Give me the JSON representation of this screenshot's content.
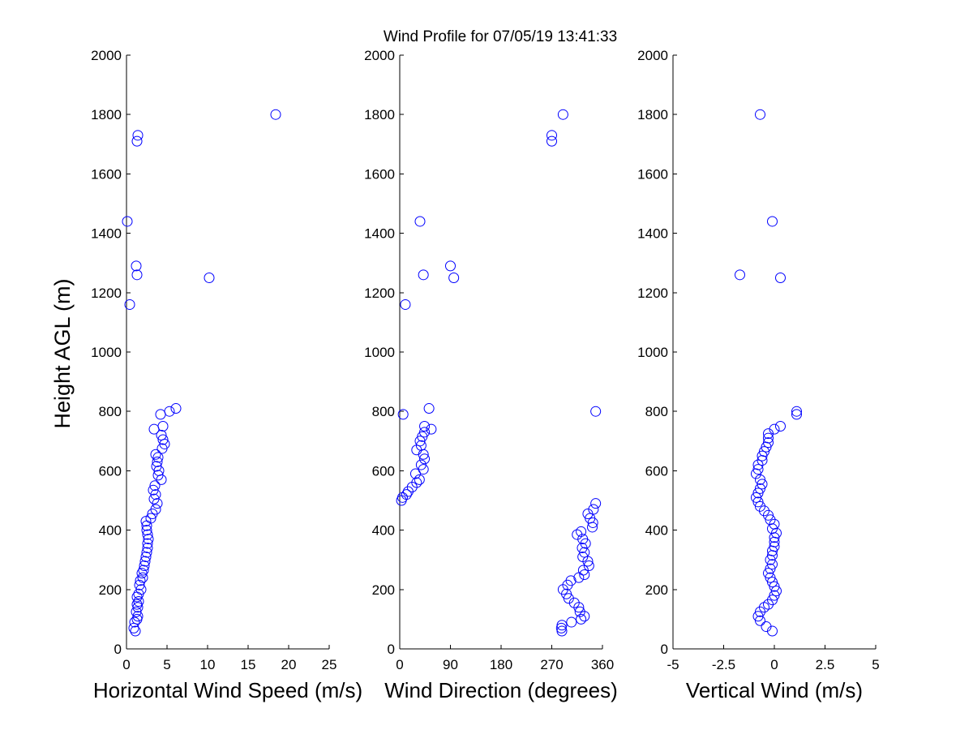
{
  "title": "Wind Profile for  07/05/19 13:41:33",
  "ylabel": "Height AGL (m)",
  "marker_color": "#0000ff",
  "chart_data": [
    {
      "type": "scatter",
      "xlabel": "Horizontal Wind Speed (m/s)",
      "ylabel": "Height AGL (m)",
      "xlim": [
        0,
        25
      ],
      "ylim": [
        0,
        2000
      ],
      "xticks": [
        0,
        5,
        10,
        15,
        20,
        25
      ],
      "xtick_labels": [
        "0",
        "5",
        "10",
        "15",
        "20",
        "25"
      ],
      "yticks": [
        0,
        200,
        400,
        600,
        800,
        1000,
        1200,
        1400,
        1600,
        1800,
        2000
      ],
      "ytick_labels": [
        "0",
        "200",
        "400",
        "600",
        "800",
        "1000",
        "1200",
        "1400",
        "1600",
        "1800",
        "2000"
      ],
      "grid": false,
      "marker": "circle-open",
      "points": [
        [
          1.1,
          60
        ],
        [
          0.9,
          70
        ],
        [
          1.0,
          90
        ],
        [
          1.3,
          100
        ],
        [
          1.4,
          110
        ],
        [
          1.2,
          125
        ],
        [
          1.4,
          140
        ],
        [
          1.3,
          150
        ],
        [
          1.5,
          160
        ],
        [
          1.3,
          175
        ],
        [
          1.5,
          185
        ],
        [
          1.8,
          200
        ],
        [
          1.6,
          215
        ],
        [
          1.7,
          230
        ],
        [
          2.0,
          240
        ],
        [
          1.9,
          255
        ],
        [
          2.1,
          265
        ],
        [
          2.2,
          280
        ],
        [
          2.3,
          295
        ],
        [
          2.4,
          310
        ],
        [
          2.5,
          325
        ],
        [
          2.6,
          340
        ],
        [
          2.6,
          355
        ],
        [
          2.7,
          370
        ],
        [
          2.6,
          385
        ],
        [
          2.5,
          400
        ],
        [
          2.5,
          415
        ],
        [
          2.4,
          430
        ],
        [
          3.0,
          440
        ],
        [
          3.2,
          455
        ],
        [
          3.6,
          470
        ],
        [
          3.8,
          490
        ],
        [
          3.4,
          505
        ],
        [
          3.6,
          520
        ],
        [
          3.3,
          535
        ],
        [
          3.5,
          550
        ],
        [
          4.3,
          570
        ],
        [
          3.9,
          585
        ],
        [
          4.0,
          600
        ],
        [
          3.7,
          615
        ],
        [
          3.8,
          630
        ],
        [
          3.9,
          645
        ],
        [
          3.6,
          655
        ],
        [
          4.4,
          675
        ],
        [
          4.7,
          690
        ],
        [
          4.5,
          705
        ],
        [
          4.3,
          720
        ],
        [
          3.4,
          740
        ],
        [
          4.5,
          750
        ],
        [
          4.2,
          790
        ],
        [
          5.3,
          800
        ],
        [
          6.1,
          810
        ],
        [
          0.4,
          1160
        ],
        [
          10.2,
          1250
        ],
        [
          1.3,
          1260
        ],
        [
          1.2,
          1290
        ],
        [
          0.1,
          1440
        ],
        [
          1.3,
          1710
        ],
        [
          1.4,
          1730
        ],
        [
          18.4,
          1800
        ]
      ]
    },
    {
      "type": "scatter",
      "xlabel": "Wind Direction (degrees)",
      "ylabel": "",
      "xlim": [
        0,
        360
      ],
      "ylim": [
        0,
        2000
      ],
      "xticks": [
        0,
        90,
        180,
        270,
        360
      ],
      "xtick_labels": [
        "0",
        "90",
        "180",
        "270",
        "360"
      ],
      "yticks": [
        0,
        200,
        400,
        600,
        800,
        1000,
        1200,
        1400,
        1600,
        1800,
        2000
      ],
      "ytick_labels": [
        "0",
        "200",
        "400",
        "600",
        "800",
        "1000",
        "1200",
        "1400",
        "1600",
        "1800",
        "2000"
      ],
      "grid": false,
      "marker": "circle-open",
      "points": [
        [
          288,
          60
        ],
        [
          287,
          70
        ],
        [
          288,
          80
        ],
        [
          305,
          90
        ],
        [
          322,
          100
        ],
        [
          328,
          110
        ],
        [
          320,
          125
        ],
        [
          318,
          140
        ],
        [
          310,
          155
        ],
        [
          300,
          170
        ],
        [
          296,
          185
        ],
        [
          290,
          200
        ],
        [
          298,
          215
        ],
        [
          304,
          230
        ],
        [
          318,
          240
        ],
        [
          328,
          250
        ],
        [
          326,
          265
        ],
        [
          336,
          280
        ],
        [
          334,
          295
        ],
        [
          325,
          310
        ],
        [
          328,
          325
        ],
        [
          324,
          340
        ],
        [
          330,
          355
        ],
        [
          325,
          370
        ],
        [
          315,
          385
        ],
        [
          322,
          395
        ],
        [
          342,
          410
        ],
        [
          343,
          425
        ],
        [
          338,
          440
        ],
        [
          334,
          455
        ],
        [
          344,
          470
        ],
        [
          348,
          490
        ],
        [
          3,
          500
        ],
        [
          5,
          510
        ],
        [
          12,
          520
        ],
        [
          15,
          530
        ],
        [
          22,
          545
        ],
        [
          30,
          560
        ],
        [
          35,
          570
        ],
        [
          28,
          590
        ],
        [
          42,
          605
        ],
        [
          38,
          620
        ],
        [
          44,
          640
        ],
        [
          42,
          655
        ],
        [
          30,
          670
        ],
        [
          38,
          685
        ],
        [
          36,
          700
        ],
        [
          40,
          715
        ],
        [
          44,
          730
        ],
        [
          56,
          740
        ],
        [
          44,
          750
        ],
        [
          6,
          790
        ],
        [
          348,
          800
        ],
        [
          52,
          810
        ],
        [
          10,
          1160
        ],
        [
          96,
          1250
        ],
        [
          42,
          1260
        ],
        [
          90,
          1290
        ],
        [
          36,
          1440
        ],
        [
          270,
          1710
        ],
        [
          270,
          1730
        ],
        [
          290,
          1800
        ]
      ]
    },
    {
      "type": "scatter",
      "xlabel": "Vertical Wind (m/s)",
      "ylabel": "",
      "xlim": [
        -5,
        5
      ],
      "ylim": [
        0,
        2000
      ],
      "xticks": [
        -5,
        -2.5,
        0,
        2.5,
        5
      ],
      "xtick_labels": [
        "-5",
        "-2.5",
        "0",
        "2.5",
        "5"
      ],
      "yticks": [
        0,
        200,
        400,
        600,
        800,
        1000,
        1200,
        1400,
        1600,
        1800,
        2000
      ],
      "ytick_labels": [
        "0",
        "200",
        "400",
        "600",
        "800",
        "1000",
        "1200",
        "1400",
        "1600",
        "1800",
        "2000"
      ],
      "grid": false,
      "marker": "circle-open",
      "points": [
        [
          -0.1,
          60
        ],
        [
          -0.4,
          75
        ],
        [
          -0.7,
          95
        ],
        [
          -0.8,
          110
        ],
        [
          -0.7,
          125
        ],
        [
          -0.5,
          140
        ],
        [
          -0.3,
          150
        ],
        [
          -0.1,
          165
        ],
        [
          0.0,
          180
        ],
        [
          0.1,
          195
        ],
        [
          0.0,
          210
        ],
        [
          -0.1,
          225
        ],
        [
          -0.2,
          240
        ],
        [
          -0.3,
          255
        ],
        [
          -0.2,
          270
        ],
        [
          -0.1,
          285
        ],
        [
          -0.2,
          300
        ],
        [
          -0.1,
          315
        ],
        [
          -0.1,
          330
        ],
        [
          0.0,
          345
        ],
        [
          0.0,
          360
        ],
        [
          0.0,
          375
        ],
        [
          0.1,
          390
        ],
        [
          -0.1,
          405
        ],
        [
          0.0,
          420
        ],
        [
          -0.2,
          435
        ],
        [
          -0.3,
          450
        ],
        [
          -0.5,
          465
        ],
        [
          -0.7,
          480
        ],
        [
          -0.8,
          495
        ],
        [
          -0.9,
          510
        ],
        [
          -0.8,
          525
        ],
        [
          -0.7,
          540
        ],
        [
          -0.6,
          555
        ],
        [
          -0.7,
          570
        ],
        [
          -0.9,
          590
        ],
        [
          -0.8,
          605
        ],
        [
          -0.8,
          620
        ],
        [
          -0.6,
          635
        ],
        [
          -0.6,
          650
        ],
        [
          -0.5,
          665
        ],
        [
          -0.4,
          680
        ],
        [
          -0.3,
          695
        ],
        [
          -0.3,
          710
        ],
        [
          -0.3,
          725
        ],
        [
          0.0,
          740
        ],
        [
          0.3,
          750
        ],
        [
          1.1,
          790
        ],
        [
          1.1,
          800
        ],
        [
          -1.7,
          1260
        ],
        [
          0.3,
          1250
        ],
        [
          -0.1,
          1440
        ],
        [
          -0.7,
          1800
        ]
      ]
    }
  ]
}
